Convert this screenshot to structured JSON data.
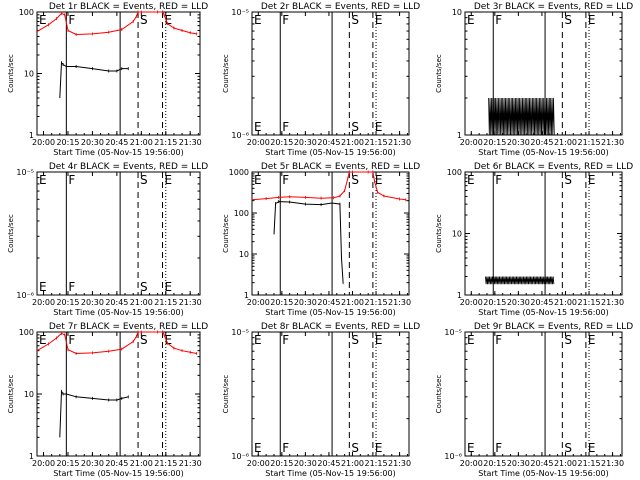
{
  "colors": {
    "black": "#000000",
    "red": "#ff0000",
    "background": "#ffffff"
  },
  "chart_data": [
    {
      "panel": "det1r",
      "type": "line",
      "title": "Det 1r BLACK = Events, RED = LLD",
      "xlabel": "Start Time (05-Nov-15 19:56:00)",
      "ylabel": "Counts/sec",
      "yscale": "log",
      "ylim": [
        1,
        100
      ],
      "xlim": [
        "19:56",
        "21:36"
      ],
      "x_ticks": [
        "20:00",
        "20:15",
        "20:30",
        "20:45",
        "21:00",
        "21:15",
        "21:30"
      ],
      "y_ticks": [
        "1",
        "10",
        "100"
      ],
      "markers": [
        {
          "label": "E",
          "time": "19:56",
          "style": "dotted"
        },
        {
          "label": "F",
          "time": "20:14",
          "style": "solid"
        },
        {
          "label": "",
          "time": "20:47",
          "style": "solid"
        },
        {
          "label": "S",
          "time": "20:58",
          "style": "dashed"
        },
        {
          "label": "E",
          "time": "21:13",
          "style": "dashed"
        },
        {
          "label": "",
          "time": "21:15",
          "style": "dotted"
        }
      ],
      "series": [
        {
          "color": "red",
          "x": [
            "19:56",
            "20:03",
            "20:08",
            "20:11",
            "20:13",
            "20:15",
            "20:20",
            "20:30",
            "20:40",
            "20:48",
            "20:55",
            "20:57",
            "20:58",
            "21:00",
            "21:10",
            "21:13",
            "21:14",
            "21:16",
            "21:20",
            "21:25",
            "21:30",
            "21:34"
          ],
          "y": [
            48,
            62,
            78,
            95,
            90,
            50,
            43,
            44,
            47,
            52,
            70,
            85,
            100,
            100,
            100,
            100,
            90,
            65,
            55,
            50,
            46,
            44
          ]
        },
        {
          "color": "black",
          "x": [
            "20:10",
            "20:11",
            "20:12",
            "20:14",
            "20:20",
            "20:30",
            "20:40",
            "20:45",
            "20:48",
            "20:52"
          ],
          "y": [
            4,
            15,
            14,
            13,
            13,
            12,
            11,
            11,
            12,
            12
          ]
        }
      ]
    },
    {
      "panel": "det2r",
      "type": "line",
      "title": "Det 2r BLACK = Events, RED = LLD",
      "xlabel": "Start Time (05-Nov-15 19:56:00)",
      "ylabel": "Counts/sec",
      "yscale": "log",
      "ylim": [
        1e-06,
        1e-05
      ],
      "xlim": [
        "19:56",
        "21:36"
      ],
      "x_ticks": [
        "20:00",
        "20:15",
        "20:30",
        "20:45",
        "21:00",
        "21:15",
        "21:30"
      ],
      "y_ticks": [
        "10⁻⁶",
        "10⁻⁵"
      ],
      "markers": [
        {
          "label": "E",
          "time": "19:56",
          "style": "dotted"
        },
        {
          "label": "F",
          "time": "20:14",
          "style": "solid"
        },
        {
          "label": "",
          "time": "20:47",
          "style": "solid"
        },
        {
          "label": "S",
          "time": "20:58",
          "style": "dashed"
        },
        {
          "label": "E",
          "time": "21:13",
          "style": "dashed"
        },
        {
          "label": "",
          "time": "21:15",
          "style": "dotted"
        }
      ],
      "series": []
    },
    {
      "panel": "det3r",
      "type": "line",
      "title": "Det 3r BLACK = Events, RED = LLD",
      "xlabel": "Start Time (05-Nov-15 19:56:00)",
      "ylabel": "Counts/sec",
      "yscale": "log",
      "ylim": [
        1,
        10
      ],
      "xlim": [
        "19:56",
        "21:36"
      ],
      "x_ticks": [
        "20:00",
        "20:15",
        "20:30",
        "20:45",
        "21:00",
        "21:15",
        "21:30"
      ],
      "y_ticks": [
        "1",
        "10"
      ],
      "markers": [
        {
          "label": "E",
          "time": "19:56",
          "style": "dotted"
        },
        {
          "label": "F",
          "time": "20:14",
          "style": "solid"
        },
        {
          "label": "",
          "time": "20:47",
          "style": "solid"
        },
        {
          "label": "S",
          "time": "20:58",
          "style": "dashed"
        },
        {
          "label": "E",
          "time": "21:13",
          "style": "dashed"
        },
        {
          "label": "",
          "time": "21:15",
          "style": "dotted"
        }
      ],
      "series": [
        {
          "color": "black",
          "style": "spiky",
          "x_start": "20:11",
          "x_end": "20:53",
          "low": 1,
          "high": 2
        }
      ]
    },
    {
      "panel": "det4r",
      "type": "line",
      "title": "Det 4r BLACK = Events, RED = LLD",
      "xlabel": "Start Time (05-Nov-15 19:56:00)",
      "ylabel": "Counts/sec",
      "yscale": "log",
      "ylim": [
        1e-06,
        1e-05
      ],
      "xlim": [
        "19:56",
        "21:36"
      ],
      "x_ticks": [
        "20:00",
        "20:15",
        "20:30",
        "20:45",
        "21:00",
        "21:15",
        "21:30"
      ],
      "y_ticks": [
        "10⁻⁶",
        "10⁻⁵"
      ],
      "markers": [
        {
          "label": "E",
          "time": "19:56",
          "style": "dotted"
        },
        {
          "label": "F",
          "time": "20:14",
          "style": "solid"
        },
        {
          "label": "",
          "time": "20:47",
          "style": "solid"
        },
        {
          "label": "S",
          "time": "20:58",
          "style": "dashed"
        },
        {
          "label": "E",
          "time": "21:13",
          "style": "dashed"
        },
        {
          "label": "",
          "time": "21:15",
          "style": "dotted"
        }
      ],
      "series": []
    },
    {
      "panel": "det5r",
      "type": "line",
      "title": "Det 5r BLACK = Events, RED = LLD",
      "xlabel": "Start Time (05-Nov-15 19:56:00)",
      "ylabel": "Counts/sec",
      "yscale": "log",
      "ylim": [
        1,
        1000
      ],
      "xlim": [
        "19:56",
        "21:36"
      ],
      "x_ticks": [
        "20:00",
        "20:15",
        "20:30",
        "20:45",
        "21:00",
        "21:15",
        "21:30"
      ],
      "y_ticks": [
        "1",
        "10",
        "100",
        "1000"
      ],
      "markers": [
        {
          "label": "E",
          "time": "19:56",
          "style": "dotted"
        },
        {
          "label": "F",
          "time": "20:14",
          "style": "solid"
        },
        {
          "label": "",
          "time": "20:47",
          "style": "solid"
        },
        {
          "label": "S",
          "time": "20:58",
          "style": "dashed"
        },
        {
          "label": "E",
          "time": "21:13",
          "style": "dashed"
        },
        {
          "label": "",
          "time": "21:15",
          "style": "dotted"
        }
      ],
      "series": [
        {
          "color": "red",
          "x": [
            "19:56",
            "20:05",
            "20:13",
            "20:20",
            "20:30",
            "20:40",
            "20:48",
            "20:52",
            "20:55",
            "20:57",
            "20:58",
            "21:00",
            "21:10",
            "21:13",
            "21:14",
            "21:16",
            "21:20",
            "21:30",
            "21:34"
          ],
          "y": [
            210,
            225,
            240,
            250,
            240,
            230,
            235,
            260,
            350,
            700,
            1000,
            1000,
            1000,
            1000,
            600,
            320,
            260,
            220,
            210
          ]
        },
        {
          "color": "black",
          "x": [
            "20:10",
            "20:11",
            "20:13",
            "20:20",
            "20:30",
            "20:40",
            "20:47",
            "20:52",
            "20:53",
            "20:54"
          ],
          "y": [
            30,
            170,
            190,
            185,
            165,
            160,
            175,
            165,
            8,
            2
          ]
        }
      ]
    },
    {
      "panel": "det6r",
      "type": "line",
      "title": "Det 6r BLACK = Events, RED = LLD",
      "xlabel": "Start Time (05-Nov-15 19:56:00)",
      "ylabel": "Counts/sec",
      "yscale": "log",
      "ylim": [
        1,
        100
      ],
      "xlim": [
        "19:56",
        "21:36"
      ],
      "x_ticks": [
        "20:00",
        "20:15",
        "20:30",
        "20:45",
        "21:00",
        "21:15",
        "21:30"
      ],
      "y_ticks": [
        "1",
        "10",
        "100"
      ],
      "markers": [
        {
          "label": "E",
          "time": "19:56",
          "style": "dotted"
        },
        {
          "label": "F",
          "time": "20:14",
          "style": "solid"
        },
        {
          "label": "",
          "time": "20:47",
          "style": "solid"
        },
        {
          "label": "S",
          "time": "20:58",
          "style": "dashed"
        },
        {
          "label": "E",
          "time": "21:13",
          "style": "dashed"
        },
        {
          "label": "",
          "time": "21:15",
          "style": "dotted"
        }
      ],
      "series": [
        {
          "color": "black",
          "style": "spiky",
          "x_start": "20:09",
          "x_end": "20:53",
          "low": 1.5,
          "high": 2
        }
      ]
    },
    {
      "panel": "det7r",
      "type": "line",
      "title": "Det 7r BLACK = Events, RED = LLD",
      "xlabel": "Start Time (05-Nov-15 19:56:00)",
      "ylabel": "Counts/sec",
      "yscale": "log",
      "ylim": [
        1,
        100
      ],
      "xlim": [
        "19:56",
        "21:36"
      ],
      "x_ticks": [
        "20:00",
        "20:15",
        "20:30",
        "20:45",
        "21:00",
        "21:15",
        "21:30"
      ],
      "y_ticks": [
        "1",
        "10",
        "100"
      ],
      "markers": [
        {
          "label": "E",
          "time": "19:56",
          "style": "dotted"
        },
        {
          "label": "F",
          "time": "20:14",
          "style": "solid"
        },
        {
          "label": "",
          "time": "20:47",
          "style": "solid"
        },
        {
          "label": "S",
          "time": "20:58",
          "style": "dashed"
        },
        {
          "label": "E",
          "time": "21:13",
          "style": "dashed"
        },
        {
          "label": "",
          "time": "21:15",
          "style": "dotted"
        }
      ],
      "series": [
        {
          "color": "red",
          "x": [
            "19:56",
            "20:03",
            "20:08",
            "20:11",
            "20:13",
            "20:15",
            "20:20",
            "20:30",
            "20:40",
            "20:48",
            "20:55",
            "20:57",
            "20:58",
            "21:00",
            "21:10",
            "21:13",
            "21:14",
            "21:16",
            "21:20",
            "21:25",
            "21:30",
            "21:34"
          ],
          "y": [
            50,
            64,
            80,
            95,
            90,
            52,
            45,
            46,
            49,
            53,
            70,
            85,
            100,
            100,
            100,
            100,
            90,
            66,
            55,
            50,
            47,
            45
          ]
        },
        {
          "color": "black",
          "x": [
            "20:10",
            "20:11",
            "20:12",
            "20:14",
            "20:20",
            "20:30",
            "20:40",
            "20:45",
            "20:48",
            "20:52"
          ],
          "y": [
            2,
            11,
            10,
            10,
            9,
            8.5,
            8,
            8,
            8.5,
            9
          ]
        }
      ]
    },
    {
      "panel": "det8r",
      "type": "line",
      "title": "Det 8r BLACK = Events, RED = LLD",
      "xlabel": "Start Time (05-Nov-15 19:56:00)",
      "ylabel": "Counts/sec",
      "yscale": "log",
      "ylim": [
        1e-06,
        1e-05
      ],
      "xlim": [
        "19:56",
        "21:36"
      ],
      "x_ticks": [
        "20:00",
        "20:15",
        "20:30",
        "20:45",
        "21:00",
        "21:15",
        "21:30"
      ],
      "y_ticks": [
        "10⁻⁶",
        "10⁻⁵"
      ],
      "markers": [
        {
          "label": "E",
          "time": "19:56",
          "style": "dotted"
        },
        {
          "label": "F",
          "time": "20:14",
          "style": "solid"
        },
        {
          "label": "",
          "time": "20:47",
          "style": "solid"
        },
        {
          "label": "S",
          "time": "20:58",
          "style": "dashed"
        },
        {
          "label": "E",
          "time": "21:13",
          "style": "dashed"
        },
        {
          "label": "",
          "time": "21:15",
          "style": "dotted"
        }
      ],
      "series": []
    },
    {
      "panel": "det9r",
      "type": "line",
      "title": "Det 9r BLACK = Events, RED = LLD",
      "xlabel": "Start Time (05-Nov-15 19:56:00)",
      "ylabel": "Counts/sec",
      "yscale": "log",
      "ylim": [
        1e-06,
        1e-05
      ],
      "xlim": [
        "19:56",
        "21:36"
      ],
      "x_ticks": [
        "20:00",
        "20:15",
        "20:30",
        "20:45",
        "21:00",
        "21:15",
        "21:30"
      ],
      "y_ticks": [
        "10⁻⁶",
        "10⁻⁵"
      ],
      "markers": [
        {
          "label": "E",
          "time": "19:56",
          "style": "dotted"
        },
        {
          "label": "F",
          "time": "20:14",
          "style": "solid"
        },
        {
          "label": "",
          "time": "20:47",
          "style": "solid"
        },
        {
          "label": "S",
          "time": "20:58",
          "style": "dashed"
        },
        {
          "label": "E",
          "time": "21:13",
          "style": "dashed"
        },
        {
          "label": "",
          "time": "21:15",
          "style": "dotted"
        }
      ],
      "series": []
    }
  ]
}
